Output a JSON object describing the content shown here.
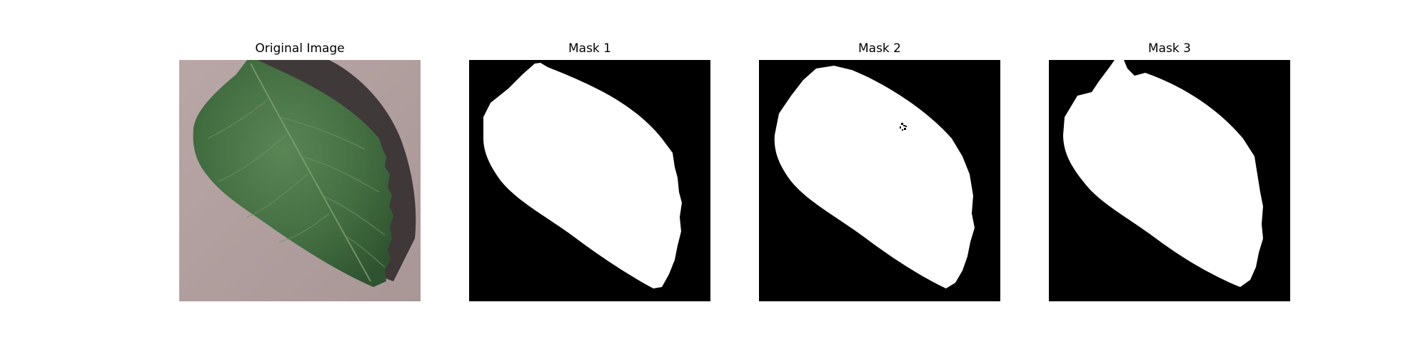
{
  "panels": [
    {
      "title": "Original Image"
    },
    {
      "title": "Mask 1"
    },
    {
      "title": "Mask 2"
    },
    {
      "title": "Mask 3"
    }
  ],
  "colors": {
    "background": "#ffffff",
    "surface": "#b3a3a1",
    "leaf": "#3f6a3f",
    "leaf_shadow": "#2a2a2a",
    "mask_background": "#000000",
    "mask_foreground": "#ffffff"
  }
}
